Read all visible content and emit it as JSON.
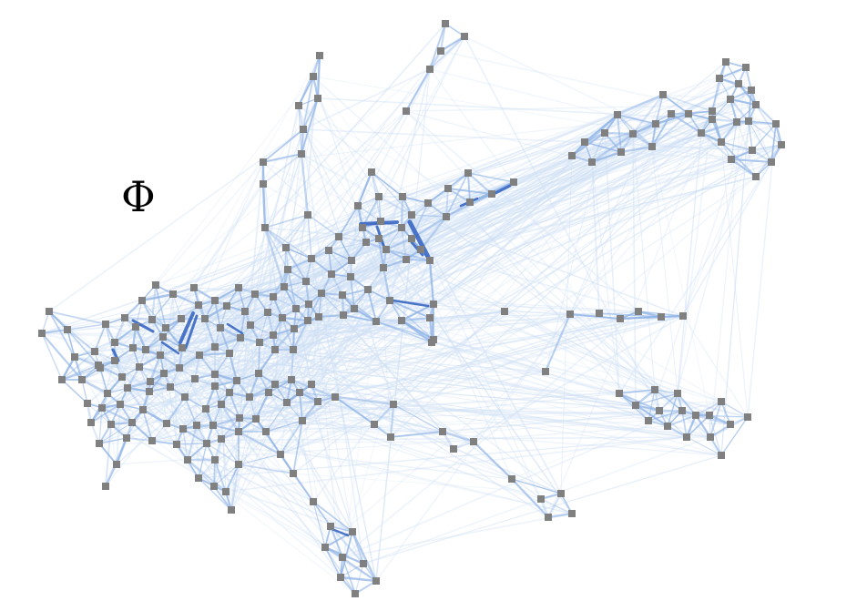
{
  "symbol": "Φ",
  "colors": {
    "node": "#808080",
    "edge_light": "#cfe0f5",
    "edge_mid": "#8fb3e6",
    "edge_strong": "#2f5fbf",
    "background": "#ffffff"
  }
}
